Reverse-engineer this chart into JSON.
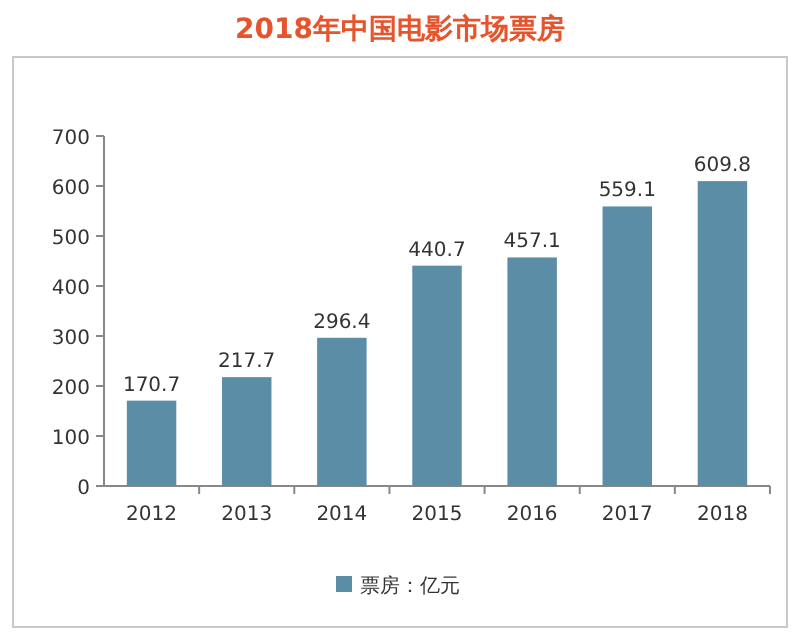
{
  "chart_data": {
    "type": "bar",
    "title": "2018年中国电影市场票房",
    "categories": [
      "2012",
      "2013",
      "2014",
      "2015",
      "2016",
      "2017",
      "2018"
    ],
    "series": [
      {
        "name": "票房：亿元",
        "color": "#5b8ea6",
        "values": [
          170.7,
          217.7,
          296.4,
          440.7,
          457.1,
          559.1,
          609.8
        ]
      }
    ],
    "ylim": [
      0,
      700
    ],
    "yticks": [
      0,
      100,
      200,
      300,
      400,
      500,
      600,
      700
    ],
    "data_labels": true,
    "legend": "bottom"
  }
}
